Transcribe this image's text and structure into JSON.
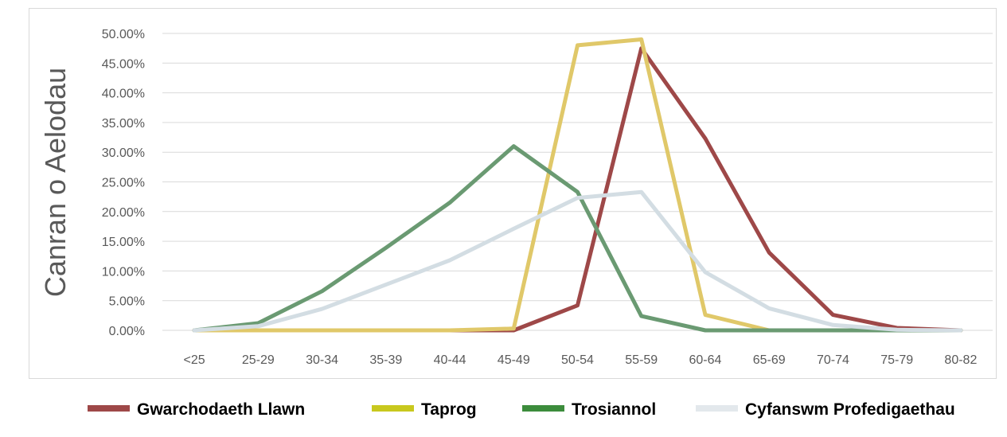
{
  "chart_data": {
    "type": "line",
    "title": "",
    "xlabel": "",
    "ylabel": "Canran o Aelodau",
    "categories": [
      "<25",
      "25-29",
      "30-34",
      "35-39",
      "40-44",
      "45-49",
      "50-54",
      "55-59",
      "60-64",
      "65-69",
      "70-74",
      "75-79",
      "80-82"
    ],
    "ylim": [
      0,
      50
    ],
    "ytick_labels": [
      "0.00%",
      "5.00%",
      "10.00%",
      "15.00%",
      "20.00%",
      "25.00%",
      "30.00%",
      "35.00%",
      "40.00%",
      "45.00%",
      "50.00%"
    ],
    "grid": true,
    "legend_position": "bottom",
    "series": [
      {
        "name": "Gwarchodaeth Llawn",
        "color": "#9e4848",
        "values": [
          0,
          0,
          0,
          0,
          0,
          0,
          4.2,
          47.5,
          32.3,
          13.1,
          2.6,
          0.4,
          0
        ]
      },
      {
        "name": "Taprog",
        "color": "#e0c869",
        "legend_color": "#c8c81e",
        "values": [
          0,
          0,
          0,
          0,
          0,
          0.3,
          48.0,
          49.0,
          2.6,
          0,
          0,
          0,
          0
        ]
      },
      {
        "name": "Trosiannol",
        "color": "#6a9a72",
        "legend_color": "#3c8c3c",
        "values": [
          0,
          1.2,
          6.6,
          13.9,
          21.5,
          31.0,
          23.3,
          2.4,
          0,
          0,
          0,
          0,
          0
        ]
      },
      {
        "name": "Cyfanswm Profedigaethau",
        "color": "#d3dde3",
        "legend_color": "#e3e8ec",
        "values": [
          0,
          0.7,
          3.6,
          7.7,
          11.8,
          17.1,
          22.3,
          23.3,
          9.8,
          3.7,
          0.9,
          0.1,
          0
        ]
      }
    ]
  }
}
